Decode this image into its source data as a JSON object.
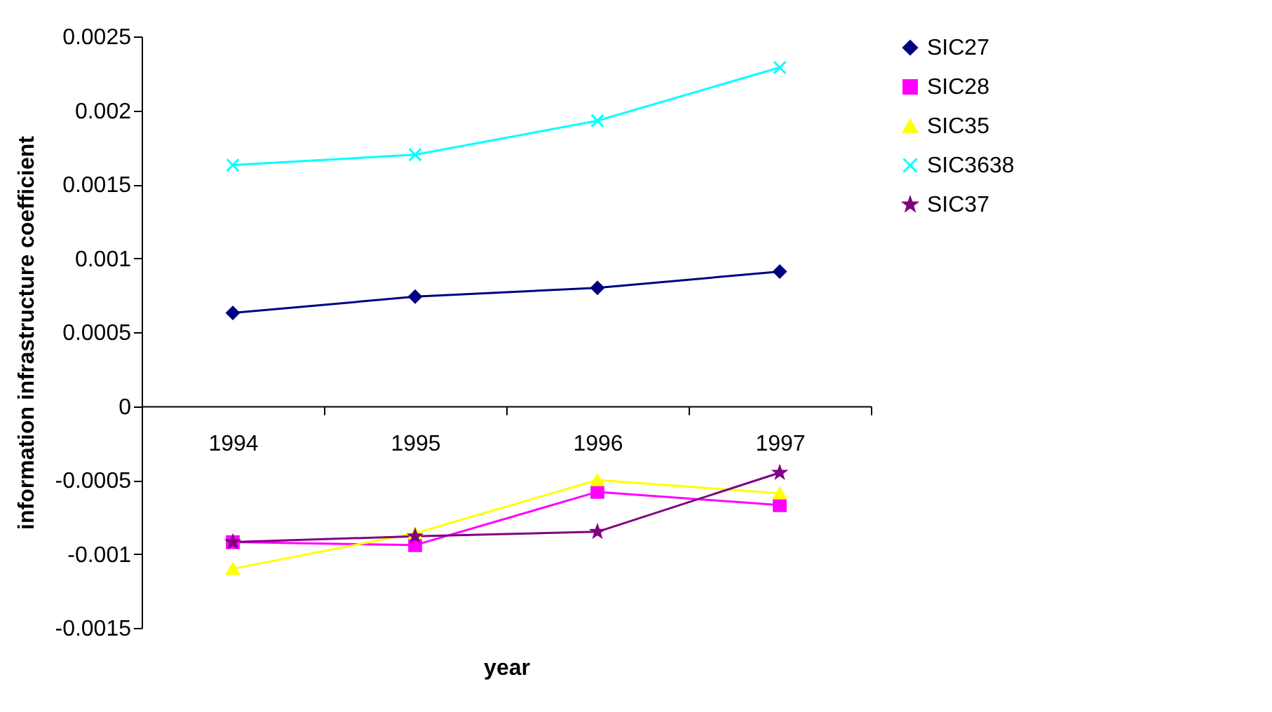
{
  "chart_data": {
    "type": "line",
    "xlabel": "year",
    "ylabel": "information infrastructure coefficient",
    "categories": [
      "1994",
      "1995",
      "1996",
      "1997"
    ],
    "series": [
      {
        "name": "SIC27",
        "color": "#000080",
        "marker": "diamond",
        "values": [
          0.00063,
          0.00074,
          0.0008,
          0.00091
        ]
      },
      {
        "name": "SIC28",
        "color": "#ff00ff",
        "marker": "square",
        "values": [
          -0.00092,
          -0.00094,
          -0.00058,
          -0.00067
        ]
      },
      {
        "name": "SIC35",
        "color": "#ffff00",
        "marker": "triangle",
        "values": [
          -0.0011,
          -0.00086,
          -0.0005,
          -0.00059
        ]
      },
      {
        "name": "SIC3638",
        "color": "#00ffff",
        "marker": "cross",
        "values": [
          0.00163,
          0.0017,
          0.00193,
          0.00229
        ]
      },
      {
        "name": "SIC37",
        "color": "#800080",
        "marker": "star",
        "values": [
          -0.00092,
          -0.00088,
          -0.00085,
          -0.00045
        ]
      }
    ],
    "ylim": [
      -0.0015,
      0.0025
    ],
    "yticks": [
      -0.0015,
      -0.001,
      -0.0005,
      0,
      0.0005,
      0.001,
      0.0015,
      0.002,
      0.0025
    ],
    "legend": "right",
    "grid": false
  }
}
